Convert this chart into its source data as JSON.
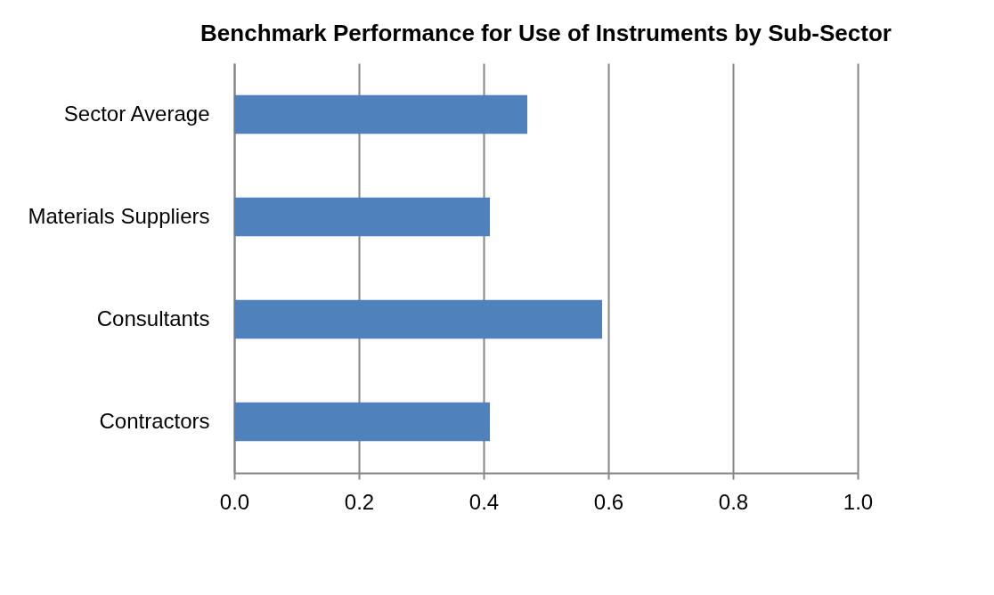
{
  "chart_data": {
    "type": "bar",
    "orientation": "horizontal",
    "title": "Benchmark Performance for Use of Instruments by Sub-Sector",
    "categories": [
      "Sector Average",
      "Materials Suppliers",
      "Consultants",
      "Contractors"
    ],
    "values": [
      0.47,
      0.41,
      0.59,
      0.41
    ],
    "color": "#4f81bd",
    "xlim": [
      0,
      1
    ],
    "xticks": [
      {
        "value": 0,
        "label": "0.0"
      },
      {
        "value": 0.2,
        "label": "0.2"
      },
      {
        "value": 0.4,
        "label": "0.4"
      },
      {
        "value": 0.6,
        "label": "0.6"
      },
      {
        "value": 0.8,
        "label": "0.8"
      },
      {
        "value": 1,
        "label": "1.0"
      }
    ],
    "grid": "x"
  }
}
